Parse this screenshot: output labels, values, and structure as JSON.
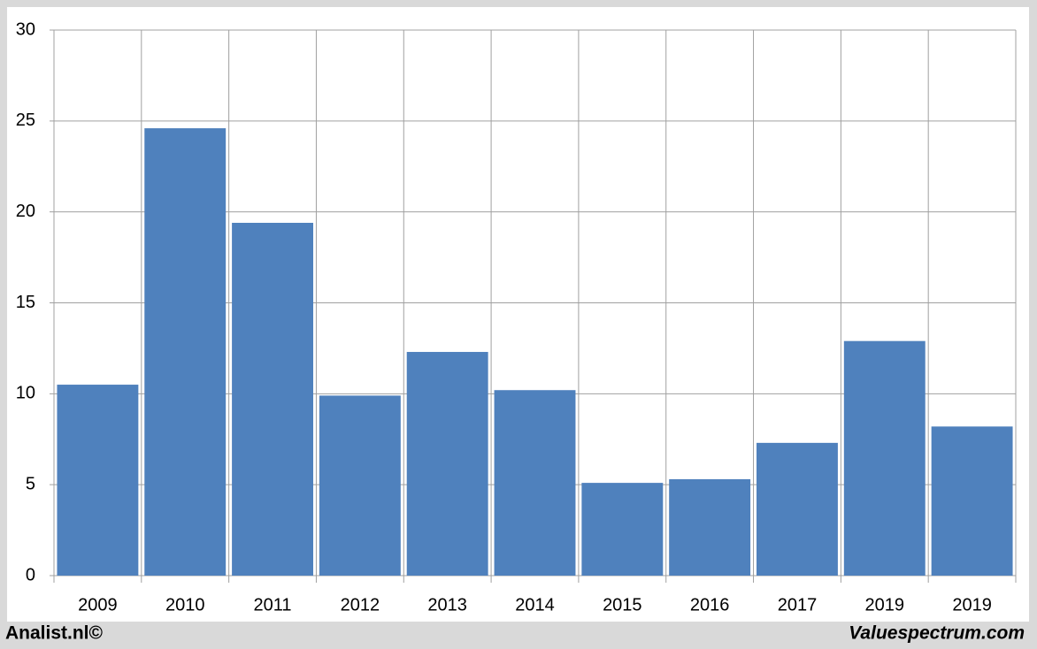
{
  "chart_data": {
    "type": "bar",
    "categories": [
      "2009",
      "2010",
      "2011",
      "2012",
      "2013",
      "2014",
      "2015",
      "2016",
      "2017",
      "2019",
      "2019"
    ],
    "values": [
      10.5,
      24.6,
      19.4,
      9.9,
      12.3,
      10.2,
      5.1,
      5.3,
      7.3,
      12.9,
      8.2
    ],
    "color": "#4f81bd",
    "ylim": [
      0,
      30
    ],
    "yticks": [
      0,
      5,
      10,
      15,
      20,
      25,
      30
    ],
    "grid": true,
    "footer_left": "Analist.nl©",
    "footer_right": "Valuespectrum.com"
  }
}
